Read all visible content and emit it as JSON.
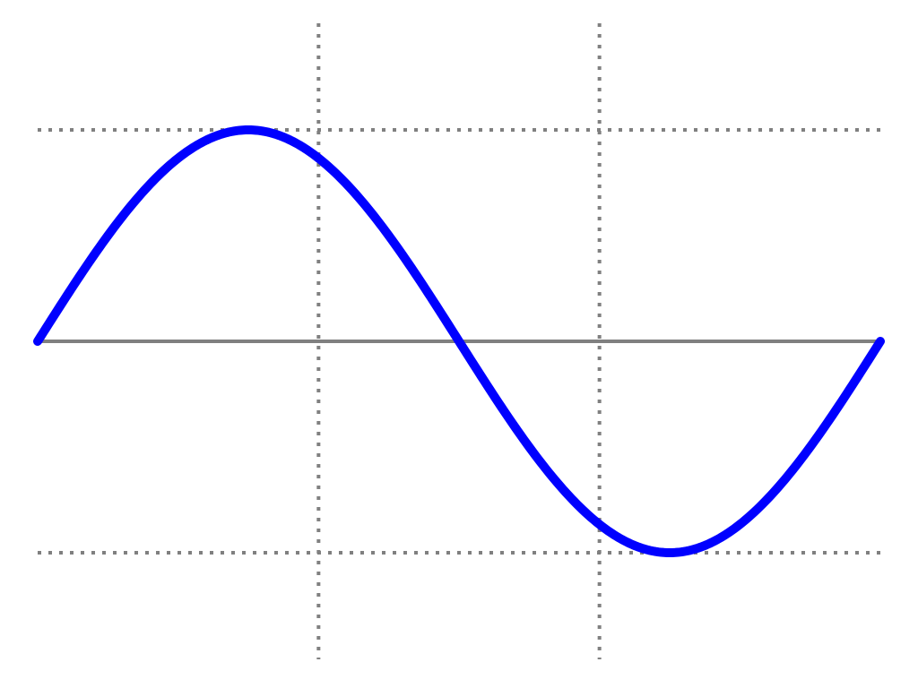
{
  "chart_data": {
    "type": "line",
    "title": "",
    "xlabel": "",
    "ylabel": "",
    "xlim": [
      0,
      1.5
    ],
    "ylim": [
      -1.5,
      1.5
    ],
    "grid": {
      "horizontal_dotted_at": [
        -1,
        1
      ],
      "vertical_dotted_at": [
        0.5,
        1.0
      ],
      "zero_line": 0
    },
    "series": [
      {
        "color": "#0000ff",
        "function": "sin(4*pi*x/3)",
        "x": [
          0,
          0.0625,
          0.125,
          0.1875,
          0.25,
          0.3125,
          0.375,
          0.4375,
          0.5,
          0.5625,
          0.625,
          0.6875,
          0.75,
          0.8125,
          0.875,
          0.9375,
          1.0,
          1.0625,
          1.125,
          1.1875,
          1.25,
          1.3125,
          1.375,
          1.4375,
          1.5
        ],
        "values": [
          0,
          0.259,
          0.5,
          0.707,
          0.866,
          0.966,
          1,
          0.966,
          0.866,
          0.707,
          0.5,
          0.259,
          0,
          -0.259,
          -0.5,
          -0.707,
          -0.866,
          -0.966,
          -1,
          -0.966,
          -0.866,
          -0.707,
          -0.5,
          -0.259,
          0
        ]
      }
    ],
    "colors": {
      "grid": "#808080",
      "zero_line": "#808080",
      "series": "#0000ff"
    }
  }
}
